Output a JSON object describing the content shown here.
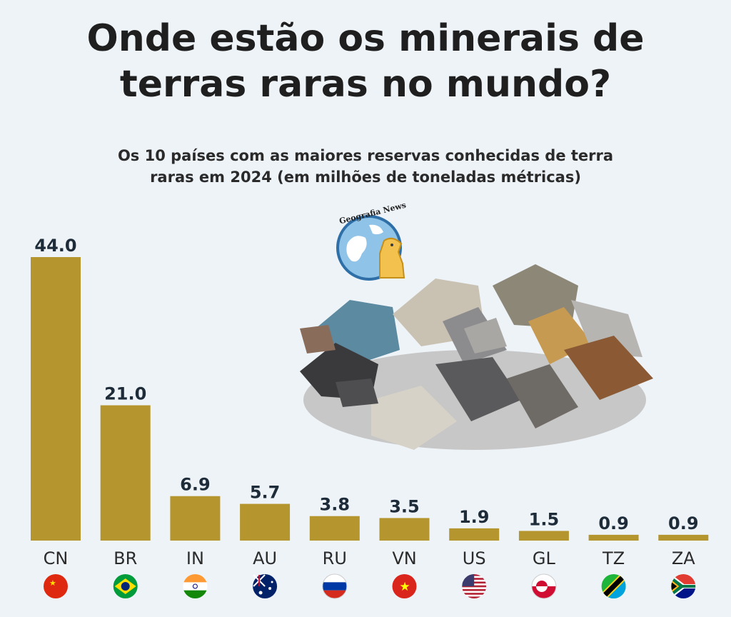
{
  "header": {
    "title_line1": "Onde estão os minerais de",
    "title_line2": "terras raras no mundo?",
    "subtitle_line1": "Os 10 países com as maiores reservas conhecidas de terra",
    "subtitle_line2": "raras em 2024 (em milhões de toneladas métricas)"
  },
  "logo": {
    "text": "Geografia News",
    "icon": "globe-chess-knight-icon"
  },
  "chart_data": {
    "type": "bar",
    "title": "Onde estão os minerais de terras raras no mundo?",
    "subtitle": "Os 10 países com as maiores reservas conhecidas de terra raras em 2024 (em milhões de toneladas métricas)",
    "categories": [
      "CN",
      "BR",
      "IN",
      "AU",
      "RU",
      "VN",
      "US",
      "GL",
      "TZ",
      "ZA"
    ],
    "values": [
      44.0,
      21.0,
      6.9,
      5.7,
      3.8,
      3.5,
      1.9,
      1.5,
      0.9,
      0.9
    ],
    "value_labels": [
      "44.0",
      "21.0",
      "6.9",
      "5.7",
      "3.8",
      "3.5",
      "1.9",
      "1.5",
      "0.9",
      "0.9"
    ],
    "xlabel": "",
    "ylabel": "",
    "ylim": [
      0,
      44
    ],
    "grid": false,
    "legend": "none",
    "flags": [
      "flag-china-icon",
      "flag-brazil-icon",
      "flag-india-icon",
      "flag-australia-icon",
      "flag-russia-icon",
      "flag-vietnam-icon",
      "flag-usa-icon",
      "flag-greenland-icon",
      "flag-tanzania-icon",
      "flag-south-africa-icon"
    ],
    "bar_color": "#b5952e"
  }
}
